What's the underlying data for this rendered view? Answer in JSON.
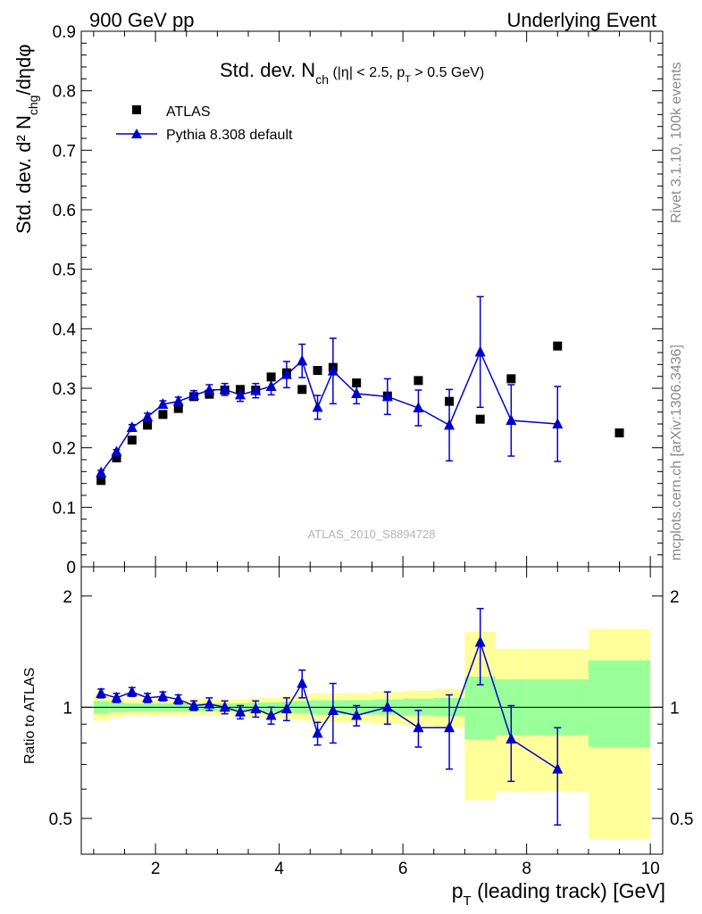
{
  "header": {
    "left": "900 GeV pp",
    "right": "Underlying Event"
  },
  "side_text": {
    "rivet": "Rivet 3.1.10,  100k events",
    "mcplots": "mcplots.cern.ch [arXiv:1306.3436]"
  },
  "watermark": "ATLAS_2010_S8894728",
  "colors": {
    "data": "#000000",
    "mc": "#0000cc",
    "band_1sigma": "#99ff99",
    "band_2sigma": "#ffff99"
  },
  "chart_data": [
    {
      "type": "scatter",
      "panel": "main",
      "title": "Std. dev. N",
      "title_sub": "ch",
      "title_suffix": " (|η| < 2.5, p",
      "title_suffix_sub": "T",
      "title_suffix_end": " > 0.5 GeV)",
      "ylabel": "Std. dev. d² N",
      "ylabel_sub": "chg",
      "ylabel_suffix": "/dηdφ",
      "xlim": [
        0.8,
        10.2
      ],
      "ylim": [
        0,
        0.9
      ],
      "yticks": [
        0,
        0.1,
        0.2,
        0.3,
        0.4,
        0.5,
        0.6,
        0.7,
        0.8,
        0.9
      ],
      "ytick_labels": [
        "0",
        "0.1",
        "0.2",
        "0.3",
        "0.4",
        "0.5",
        "0.6",
        "0.7",
        "0.8",
        "0.9"
      ],
      "legend": [
        "ATLAS",
        "Pythia 8.308 default"
      ],
      "legend_position": "top-left",
      "series": [
        {
          "name": "ATLAS",
          "marker": "square",
          "x": [
            1.12,
            1.37,
            1.62,
            1.87,
            2.12,
            2.37,
            2.62,
            2.87,
            3.12,
            3.37,
            3.62,
            3.87,
            4.12,
            4.37,
            4.62,
            4.87,
            5.25,
            5.75,
            6.25,
            6.75,
            7.25,
            7.75,
            8.5,
            9.5
          ],
          "y": [
            0.145,
            0.183,
            0.213,
            0.238,
            0.256,
            0.266,
            0.286,
            0.29,
            0.297,
            0.298,
            0.297,
            0.319,
            0.326,
            0.298,
            0.33,
            0.335,
            0.309,
            0.287,
            0.313,
            0.278,
            0.248,
            0.316,
            0.371,
            0.225
          ]
        },
        {
          "name": "Pythia 8.308 default",
          "marker": "triangle",
          "x": [
            1.12,
            1.37,
            1.62,
            1.87,
            2.12,
            2.37,
            2.62,
            2.87,
            3.12,
            3.37,
            3.62,
            3.87,
            4.12,
            4.37,
            4.62,
            4.87,
            5.25,
            5.75,
            6.25,
            6.75,
            7.25,
            7.75,
            8.5
          ],
          "y": [
            0.158,
            0.193,
            0.234,
            0.252,
            0.273,
            0.278,
            0.288,
            0.297,
            0.298,
            0.289,
            0.296,
            0.303,
            0.323,
            0.346,
            0.268,
            0.329,
            0.291,
            0.286,
            0.267,
            0.238,
            0.361,
            0.246,
            0.24
          ],
          "yerr": [
            0.004,
            0.004,
            0.005,
            0.006,
            0.006,
            0.007,
            0.008,
            0.009,
            0.01,
            0.011,
            0.012,
            0.014,
            0.022,
            0.028,
            0.02,
            0.055,
            0.017,
            0.03,
            0.03,
            0.06,
            0.093,
            0.06,
            0.063
          ]
        }
      ]
    },
    {
      "type": "scatter",
      "panel": "ratio",
      "ylabel": "Ratio to ATLAS",
      "xlabel": "p",
      "xlabel_sub": "T",
      "xlabel_suffix": " (leading track) [GeV]",
      "xlim": [
        0.8,
        10.2
      ],
      "ylim": [
        0.4,
        2.4
      ],
      "yticks": [
        0.5,
        1,
        2
      ],
      "ytick_labels": [
        "0.5",
        "1",
        "2"
      ],
      "xticks": [
        2,
        4,
        6,
        8,
        10
      ],
      "xtick_labels": [
        "2",
        "4",
        "6",
        "8",
        "10"
      ],
      "bands": {
        "edges": [
          1.0,
          1.25,
          1.5,
          1.75,
          2.0,
          2.25,
          2.5,
          2.75,
          3.0,
          3.25,
          3.5,
          3.75,
          4.0,
          4.25,
          4.5,
          4.75,
          5.0,
          5.5,
          6.0,
          6.5,
          7.0,
          7.5,
          8.0,
          9.0,
          10.0
        ],
        "inner_lo": [
          0.96,
          0.97,
          0.975,
          0.975,
          0.975,
          0.975,
          0.975,
          0.975,
          0.975,
          0.975,
          0.97,
          0.97,
          0.965,
          0.96,
          0.955,
          0.955,
          0.955,
          0.955,
          0.95,
          0.945,
          0.82,
          0.84,
          0.84,
          0.78
        ],
        "inner_hi": [
          1.04,
          1.03,
          1.025,
          1.025,
          1.025,
          1.025,
          1.025,
          1.025,
          1.025,
          1.025,
          1.03,
          1.03,
          1.035,
          1.04,
          1.045,
          1.045,
          1.045,
          1.05,
          1.055,
          1.06,
          1.21,
          1.19,
          1.19,
          1.34
        ],
        "outer_lo": [
          0.92,
          0.94,
          0.95,
          0.95,
          0.95,
          0.95,
          0.95,
          0.95,
          0.95,
          0.95,
          0.94,
          0.94,
          0.93,
          0.92,
          0.91,
          0.91,
          0.91,
          0.9,
          0.89,
          0.88,
          0.56,
          0.59,
          0.59,
          0.44
        ],
        "outer_hi": [
          1.08,
          1.06,
          1.05,
          1.05,
          1.05,
          1.05,
          1.05,
          1.05,
          1.05,
          1.05,
          1.06,
          1.06,
          1.07,
          1.08,
          1.09,
          1.09,
          1.09,
          1.1,
          1.11,
          1.12,
          1.6,
          1.44,
          1.44,
          1.63
        ]
      },
      "series": [
        {
          "name": "Pythia 8.308 default",
          "marker": "triangle",
          "x": [
            1.12,
            1.37,
            1.62,
            1.87,
            2.12,
            2.37,
            2.62,
            2.87,
            3.12,
            3.37,
            3.62,
            3.87,
            4.12,
            4.37,
            4.62,
            4.87,
            5.25,
            5.75,
            6.25,
            6.75,
            7.25,
            7.75,
            8.5
          ],
          "y": [
            1.09,
            1.06,
            1.1,
            1.06,
            1.07,
            1.05,
            1.01,
            1.02,
            1.0,
            0.97,
            0.99,
            0.95,
            0.99,
            1.16,
            0.85,
            0.98,
            0.95,
            1.0,
            0.88,
            0.88,
            1.5,
            0.82,
            0.68
          ],
          "yerr": [
            0.03,
            0.03,
            0.03,
            0.03,
            0.03,
            0.03,
            0.03,
            0.04,
            0.04,
            0.04,
            0.05,
            0.05,
            0.07,
            0.1,
            0.06,
            0.18,
            0.06,
            0.1,
            0.1,
            0.2,
            0.35,
            0.19,
            0.2
          ]
        }
      ]
    }
  ]
}
